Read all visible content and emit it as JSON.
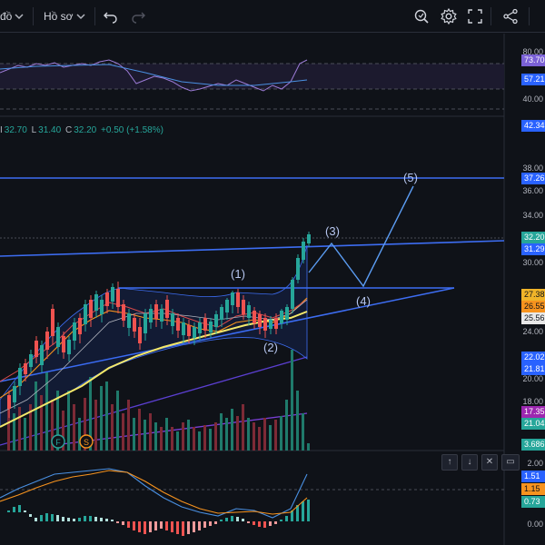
{
  "toolbar": {
    "left_label": "đồ",
    "profile_label": "Hồ sơ",
    "undo_icon": "undo-icon",
    "redo_icon": "redo-icon",
    "icons": [
      "zoom-search-icon",
      "gear-icon",
      "fullscreen-icon",
      "share-icon"
    ]
  },
  "ohlc": {
    "high_prefix": "I",
    "high": "32.70",
    "low_prefix": "L",
    "low": "31.40",
    "close_prefix": "C",
    "close": "32.20",
    "change": "+0.50 (+1.58%)"
  },
  "rsi_axis": {
    "ticks": [
      "80.00",
      "40.00"
    ],
    "badges": [
      {
        "text": "73.70",
        "color": "#7b61d6"
      },
      {
        "text": "57.21",
        "color": "#2962ff"
      }
    ]
  },
  "price_axis": {
    "ticks": [
      "38.00",
      "36.00",
      "34.00",
      "30.00",
      "24.00",
      "20.00",
      "18.00"
    ],
    "badges": [
      {
        "text": "42.34",
        "color": "#2962ff"
      },
      {
        "text": "37.26",
        "color": "#2962ff"
      },
      {
        "text": "32.20",
        "color": "#26a69a"
      },
      {
        "text": "31.29",
        "color": "#2962ff"
      },
      {
        "text": "27.38",
        "color": "#f0b429"
      },
      {
        "text": "26.55",
        "color": "#f7931e"
      },
      {
        "text": "25.56",
        "color": "#e8e8e8"
      },
      {
        "text": "22.02",
        "color": "#2962ff"
      },
      {
        "text": "21.81",
        "color": "#2962ff"
      },
      {
        "text": "17.35",
        "color": "#9c27b0"
      },
      {
        "text": "21.04",
        "color": "#26a69a"
      },
      {
        "text": "3.686",
        "color": "#26a69a"
      }
    ]
  },
  "macd_axis": {
    "ticks": [
      "2.00",
      "0.00"
    ],
    "badges": [
      {
        "text": "1.51",
        "color": "#2962ff"
      },
      {
        "text": "1.15",
        "color": "#f7931e"
      },
      {
        "text": "0.73",
        "color": "#26a69a"
      }
    ]
  },
  "wave_labels": {
    "w1": "(1)",
    "w2": "(2)",
    "w3": "(3)",
    "w4": "(4)",
    "w5": "(5)"
  },
  "event_markers": {
    "f": "F",
    "s": "S"
  },
  "pane_controls": [
    "move-up-icon",
    "move-down-icon",
    "close-pane-icon",
    "maximize-pane-icon"
  ]
}
